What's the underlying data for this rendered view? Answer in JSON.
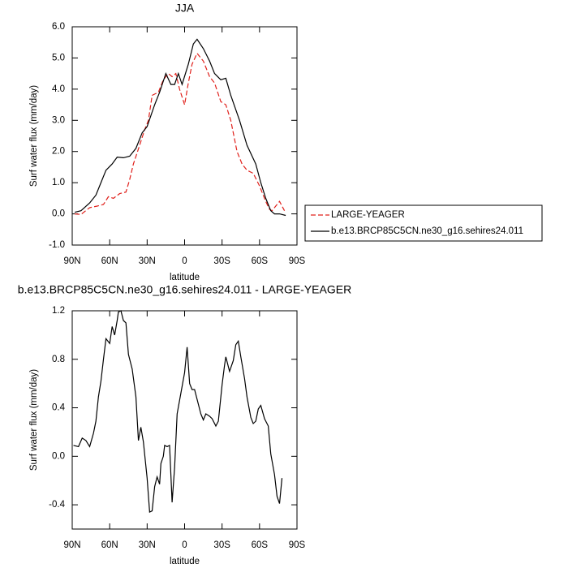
{
  "chart_data": [
    {
      "type": "line",
      "title": "JJA",
      "xlabel": "latitude",
      "ylabel": "Surf water flux (mm/day)",
      "xlim": [
        90,
        -90
      ],
      "xticks": [
        {
          "value": 90,
          "label": "90N"
        },
        {
          "value": 60,
          "label": "60N"
        },
        {
          "value": 30,
          "label": "30N"
        },
        0,
        {
          "value": -30,
          "label": "30S"
        },
        {
          "value": -60,
          "label": "60S"
        },
        {
          "value": -90,
          "label": "90S"
        }
      ],
      "ylim": [
        -1,
        6
      ],
      "yticks": [
        {
          "value": -1,
          "label": "-1.0"
        },
        {
          "value": 0,
          "label": "0.0"
        },
        {
          "value": 1,
          "label": "1.0"
        },
        {
          "value": 2,
          "label": "2.0"
        },
        {
          "value": 3,
          "label": "3.0"
        },
        {
          "value": 4,
          "label": "4.0"
        },
        {
          "value": 5,
          "label": "5.0"
        },
        {
          "value": 6,
          "label": "6.0"
        }
      ],
      "legend": "right",
      "series": [
        {
          "name": "LARGE-YEAGER",
          "color": "#e0201b",
          "dashed": true,
          "x": [
            88,
            83,
            76,
            70,
            65,
            61,
            57,
            52,
            47,
            44,
            41,
            36,
            32,
            29,
            26,
            21,
            17,
            13,
            10,
            7,
            4,
            0,
            -3,
            -6,
            -10,
            -15,
            -20,
            -24,
            -29,
            -33,
            -37,
            -42,
            -46,
            -50,
            -55,
            -60,
            -65,
            -68,
            -70,
            -74,
            -76,
            -80
          ],
          "values": [
            0.0,
            -0.02,
            0.2,
            0.25,
            0.3,
            0.55,
            0.5,
            0.65,
            0.7,
            1.1,
            1.6,
            2.2,
            2.7,
            3.0,
            3.8,
            3.9,
            4.3,
            4.5,
            4.4,
            4.5,
            4.0,
            3.5,
            4.2,
            4.8,
            5.15,
            4.9,
            4.4,
            4.2,
            3.6,
            3.5,
            3.0,
            2.0,
            1.6,
            1.4,
            1.3,
            0.9,
            0.4,
            0.15,
            0.1,
            0.3,
            0.4,
            0.1
          ]
        },
        {
          "name": "b.e13.BRCP85C5CN.ne30_g16.sehires24.011",
          "color": "#000000",
          "dashed": false,
          "x": [
            88,
            83,
            76,
            71,
            67,
            63,
            58,
            54,
            49,
            44,
            39,
            34,
            30,
            24,
            20,
            15,
            11,
            8,
            5,
            2,
            -3,
            -7,
            -10,
            -15,
            -20,
            -24,
            -29,
            -33,
            -37,
            -44,
            -50,
            -57,
            -61,
            -65,
            -69,
            -72,
            -76,
            -81
          ],
          "values": [
            0.05,
            0.1,
            0.35,
            0.6,
            1.0,
            1.4,
            1.6,
            1.82,
            1.8,
            1.85,
            2.1,
            2.6,
            2.8,
            3.5,
            3.9,
            4.5,
            4.15,
            4.15,
            4.5,
            4.15,
            4.8,
            5.45,
            5.6,
            5.3,
            4.9,
            4.5,
            4.3,
            4.35,
            3.8,
            3.0,
            2.2,
            1.6,
            1.0,
            0.5,
            0.1,
            0.0,
            0.0,
            -0.05
          ]
        }
      ]
    },
    {
      "type": "line",
      "title": "b.e13.BRCP85C5CN.ne30_g16.sehires24.011 - LARGE-YEAGER",
      "xlabel": "latitude",
      "ylabel": "Surf water flux (mm/day)",
      "xlim": [
        90,
        -90
      ],
      "xticks": [
        {
          "value": 90,
          "label": "90N"
        },
        {
          "value": 60,
          "label": "60N"
        },
        {
          "value": 30,
          "label": "30N"
        },
        0,
        {
          "value": -30,
          "label": "30S"
        },
        {
          "value": -60,
          "label": "60S"
        },
        {
          "value": -90,
          "label": "90S"
        }
      ],
      "ylim": [
        -0.6,
        1.2
      ],
      "yticks": [
        -0.4,
        {
          "value": 0,
          "label": "0.0"
        },
        0.4,
        0.8,
        1.2
      ],
      "series": [
        {
          "color": "#000000",
          "dashed": false,
          "x": [
            89,
            85,
            82,
            79,
            76,
            73,
            71,
            69,
            67,
            65,
            63,
            60,
            58,
            56,
            54,
            53,
            51,
            49,
            47,
            45,
            42,
            39,
            37,
            35,
            33,
            30,
            28,
            26,
            24,
            22,
            20,
            19,
            17,
            16,
            14,
            12,
            10,
            8,
            6,
            3,
            0,
            -2,
            -4,
            -6,
            -8,
            -10,
            -13,
            -15,
            -17,
            -20,
            -22,
            -25,
            -27,
            -30,
            -32,
            -33,
            -36,
            -39,
            -41,
            -43,
            -45,
            -48,
            -50,
            -53,
            -55,
            -57,
            -59,
            -61,
            -64,
            -67,
            -69,
            -72,
            -74,
            -76,
            -78
          ],
          "values": [
            0.09,
            0.08,
            0.15,
            0.13,
            0.08,
            0.19,
            0.29,
            0.49,
            0.62,
            0.8,
            0.97,
            0.93,
            1.07,
            1.0,
            1.12,
            1.19,
            1.2,
            1.12,
            1.1,
            0.84,
            0.72,
            0.49,
            0.13,
            0.24,
            0.12,
            -0.18,
            -0.46,
            -0.45,
            -0.25,
            -0.17,
            -0.23,
            -0.06,
            0.0,
            0.09,
            0.08,
            0.09,
            -0.38,
            -0.09,
            0.35,
            0.52,
            0.69,
            0.9,
            0.6,
            0.55,
            0.55,
            0.47,
            0.35,
            0.3,
            0.35,
            0.33,
            0.31,
            0.25,
            0.29,
            0.59,
            0.75,
            0.82,
            0.7,
            0.79,
            0.92,
            0.95,
            0.82,
            0.64,
            0.49,
            0.32,
            0.27,
            0.29,
            0.39,
            0.42,
            0.31,
            0.25,
            0.02,
            -0.15,
            -0.33,
            -0.39,
            -0.18
          ]
        }
      ]
    }
  ]
}
